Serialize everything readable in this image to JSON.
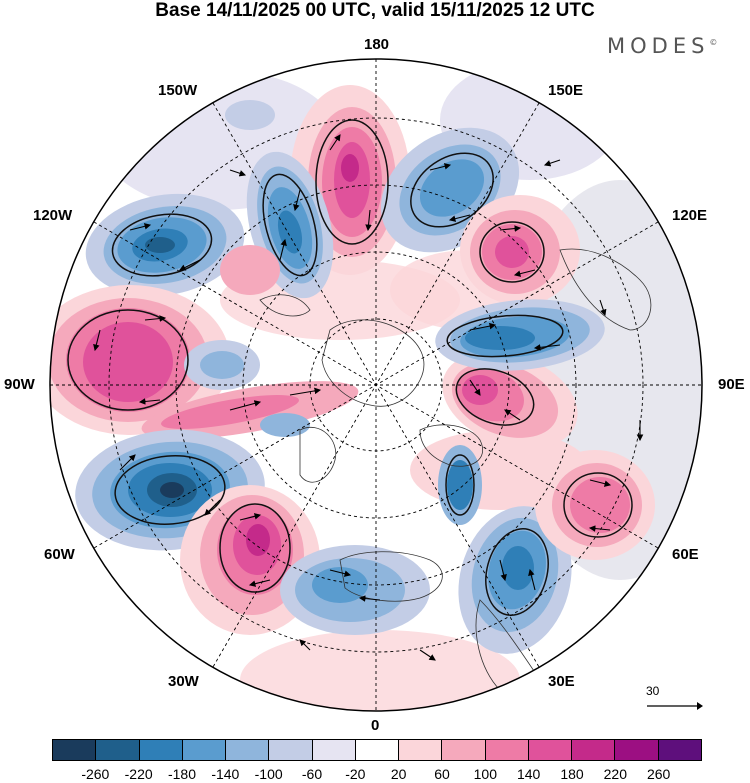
{
  "title": "Base 14/11/2025 00 UTC, valid 15/11/2025 12 UTC",
  "brand": "MODES",
  "brand_mark": "©",
  "longitude_labels": {
    "lon_180": "180",
    "lon_150e": "150E",
    "lon_120e": "120E",
    "lon_90e": "90E",
    "lon_60e": "60E",
    "lon_30e": "30E",
    "lon_0": "0",
    "lon_30w": "30W",
    "lon_60w": "60W",
    "lon_90w": "90W",
    "lon_120w": "120W",
    "lon_150w": "150W"
  },
  "vector_reference": {
    "label": "30"
  },
  "colorbar": {
    "colors": [
      "#1a3b5c",
      "#1f5f8b",
      "#2f7fb7",
      "#5a9ccf",
      "#8fb5dc",
      "#c3cde6",
      "#e6e4f2",
      "#ffffff",
      "#fbd6da",
      "#f5a9bc",
      "#ee7ba6",
      "#e0529b",
      "#c42a8a",
      "#9c0f82",
      "#5e0f7c"
    ],
    "tick_labels": [
      "-260",
      "-220",
      "-180",
      "-140",
      "-100",
      "-60",
      "-20",
      "20",
      "60",
      "100",
      "140",
      "180",
      "220",
      "260"
    ]
  },
  "anomaly_centers": [
    {
      "sign": "positive",
      "lon": "180",
      "label": "high"
    },
    {
      "sign": "negative",
      "lon": "160E",
      "label": "low"
    },
    {
      "sign": "positive",
      "lon": "130E",
      "label": "high"
    },
    {
      "sign": "negative",
      "lon": "150W",
      "label": "low"
    },
    {
      "sign": "negative",
      "lon": "120W",
      "label": "low"
    },
    {
      "sign": "positive",
      "lon": "90W",
      "label": "high"
    },
    {
      "sign": "negative",
      "lon": "75W",
      "label": "low"
    },
    {
      "sign": "positive",
      "lon": "45W",
      "label": "high"
    },
    {
      "sign": "negative",
      "lon": "10W",
      "label": "low"
    },
    {
      "sign": "negative",
      "lon": "20E",
      "label": "low"
    },
    {
      "sign": "positive",
      "lon": "60E",
      "label": "high"
    },
    {
      "sign": "positive",
      "lon": "90E",
      "label": "high"
    },
    {
      "sign": "negative",
      "lon": "100E",
      "label": "low"
    }
  ]
}
